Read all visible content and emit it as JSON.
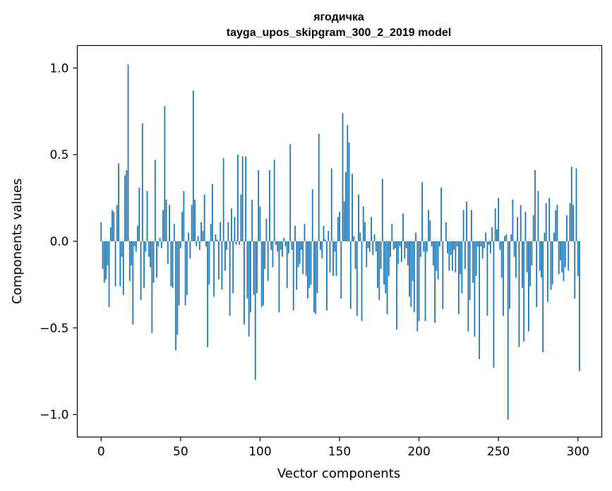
{
  "chart_data": {
    "type": "bar",
    "title_line1": "ягодичка",
    "title_line2": "tayga_upos_skipgram_300_2_2019 model",
    "xlabel": "Vector components",
    "ylabel": "Components values",
    "xlim": [
      -15,
      315
    ],
    "ylim": [
      -1.13,
      1.13
    ],
    "xticks": [
      0,
      50,
      100,
      150,
      200,
      250,
      300
    ],
    "xtick_labels": [
      "0",
      "50",
      "100",
      "150",
      "200",
      "250",
      "300"
    ],
    "yticks": [
      -1.0,
      -0.5,
      0.0,
      0.5,
      1.0
    ],
    "ytick_labels": [
      "−1.0",
      "−0.5",
      "0.0",
      "0.5",
      "1.0"
    ],
    "bar_color": "#1f77b4",
    "grid": false,
    "legend": "none",
    "series": [
      {
        "values": [
          0.11,
          -0.16,
          -0.24,
          -0.22,
          -0.14,
          -0.38,
          0.08,
          0.18,
          0.17,
          -0.26,
          0.21,
          0.45,
          -0.26,
          -0.09,
          -0.31,
          0.38,
          0.41,
          1.02,
          -0.23,
          -0.14,
          -0.48,
          -0.03,
          -0.06,
          0.09,
          0.31,
          -0.34,
          0.68,
          -0.27,
          -0.06,
          0.29,
          -0.09,
          -0.15,
          -0.53,
          -0.24,
          0.47,
          -0.21,
          -0.03,
          0.02,
          -0.04,
          0.18,
          0.78,
          0.24,
          -0.13,
          0.21,
          -0.26,
          -0.27,
          0.1,
          -0.63,
          -0.54,
          -0.37,
          -0.04,
          0.17,
          0.29,
          -0.37,
          -0.31,
          0.05,
          -0.1,
          0.21,
          0.87,
          0.24,
          -0.03,
          0.03,
          -0.05,
          0.11,
          0.06,
          0.27,
          -0.03,
          -0.61,
          -0.25,
          0.1,
          0.33,
          -0.32,
          0.04,
          0.01,
          -0.22,
          0.11,
          -0.28,
          0.48,
          -0.17,
          -0.05,
          0.11,
          -0.43,
          0.19,
          -0.3,
          0.14,
          -0.02,
          0.5,
          -0.02,
          0.27,
          0.49,
          -0.48,
          0.49,
          -0.33,
          -0.55,
          -0.41,
          0.24,
          -0.31,
          -0.8,
          -0.3,
          0.41,
          0.2,
          -0.38,
          -0.37,
          -0.16,
          0.13,
          -0.23,
          0.41,
          -0.05,
          -0.15,
          0.47,
          -0.02,
          -0.06,
          -0.41,
          -0.05,
          -0.09,
          0.02,
          -0.03,
          -0.27,
          -0.07,
          0.56,
          -0.05,
          -0.4,
          0.09,
          -0.28,
          -0.15,
          -0.13,
          -0.05,
          -0.19,
          0.1,
          -0.2,
          -0.33,
          -0.27,
          -0.25,
          0.3,
          -0.41,
          -0.42,
          -0.3,
          0.62,
          -0.05,
          -0.1,
          0.09,
          0.01,
          -0.4,
          0.06,
          -0.18,
          0.42,
          -0.2,
          -0.06,
          -0.2,
          0.14,
          0.17,
          -0.33,
          0.74,
          0.23,
          0.4,
          0.67,
          0.57,
          -0.39,
          0.39,
          0.03,
          -0.16,
          -0.43,
          0.27,
          0.05,
          -0.46,
          0.2,
          0.11,
          -0.15,
          -0.04,
          -0.06,
          0.14,
          -0.08,
          0.04,
          -0.06,
          -0.27,
          -0.34,
          -0.16,
          0.36,
          -0.25,
          -0.3,
          -0.42,
          -0.2,
          -0.09,
          0.1,
          -0.05,
          -0.04,
          -0.51,
          -0.13,
          -0.03,
          -0.12,
          0.16,
          -0.1,
          -0.04,
          -0.14,
          -0.32,
          -0.38,
          -0.23,
          -0.41,
          0.05,
          -0.52,
          -0.46,
          -0.09,
          0.34,
          -0.06,
          -0.46,
          -0.06,
          0.18,
          0.12,
          -0.03,
          -0.14,
          -0.47,
          -0.17,
          -0.22,
          -0.03,
          0.31,
          -0.39,
          0.0,
          0.11,
          -0.07,
          -0.17,
          -0.08,
          -0.17,
          -0.05,
          -0.18,
          -0.03,
          -0.42,
          -0.19,
          -0.3,
          0.18,
          -0.16,
          0.23,
          -0.52,
          -0.34,
          0.18,
          -0.24,
          -0.55,
          -0.2,
          -0.03,
          -0.68,
          -0.03,
          -0.1,
          -0.04,
          0.05,
          -0.43,
          -0.02,
          -0.07,
          0.08,
          -0.73,
          0.19,
          0.07,
          0.25,
          -0.05,
          -0.21,
          -0.43,
          0.03,
          0.04,
          -1.03,
          -0.39,
          0.04,
          0.24,
          -0.09,
          -0.21,
          0.14,
          -0.61,
          0.21,
          -0.27,
          -0.58,
          0.17,
          -0.18,
          -0.52,
          -0.26,
          -0.14,
          0.15,
          0.41,
          -0.38,
          0.29,
          -0.17,
          -0.21,
          -0.64,
          0.05,
          0.22,
          -0.35,
          0.25,
          -0.28,
          -0.25,
          0.05,
          0.18,
          0.21,
          -0.19,
          -0.11,
          -0.18,
          -0.23,
          -0.15,
          0.15,
          -0.17,
          0.22,
          0.43,
          0.21,
          -0.33,
          0.42,
          -0.2,
          -0.75
        ]
      }
    ]
  }
}
